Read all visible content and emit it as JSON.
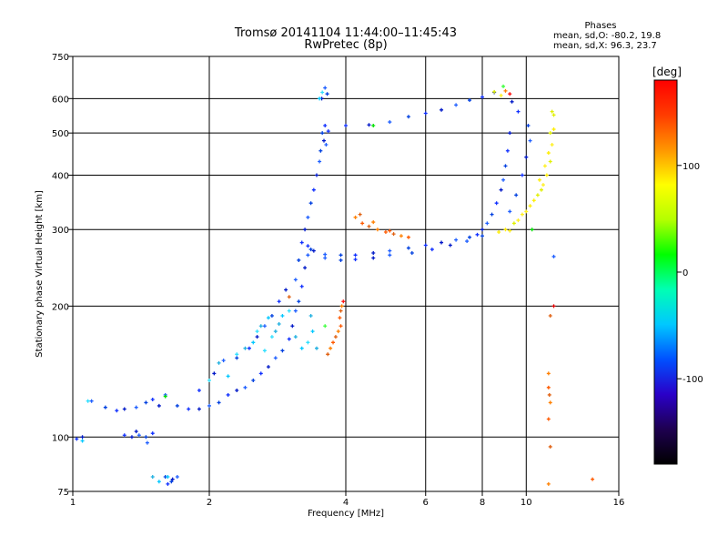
{
  "chart_data": {
    "type": "scatter",
    "title": "Tromsø 20141104 11:44:00–11:45:43",
    "subtitle": "RwPretec (8p)",
    "xlabel": "Frequency [MHz]",
    "ylabel": "Stationary phase Virtual Height [km]",
    "xscale": "log",
    "yscale": "log",
    "xlim": [
      1,
      16
    ],
    "ylim": [
      75,
      750
    ],
    "xticks": [
      1,
      2,
      4,
      6,
      8,
      10,
      16
    ],
    "yticks": [
      75,
      100,
      200,
      300,
      400,
      500,
      600,
      750
    ],
    "grid": true,
    "stats": {
      "heading": "Phases",
      "o_line": "mean, sd,O: -80.2, 19.8",
      "x_line": "mean, sd,X: 96.3, 23.7"
    },
    "colorbar": {
      "label": "[deg]",
      "range": [
        -180,
        180
      ],
      "ticks": [
        100,
        0,
        -100
      ],
      "colors": [
        "#000000",
        "#1e0050",
        "#2a00c8",
        "#0050ff",
        "#00c8ff",
        "#00ffb4",
        "#00ff00",
        "#b4ff00",
        "#ffff00",
        "#ff9600",
        "#ff3c00",
        "#ff0000"
      ]
    },
    "series": [
      {
        "color_group": "blue",
        "points": [
          [
            1.02,
            99
          ],
          [
            1.05,
            100
          ],
          [
            1.1,
            121
          ],
          [
            1.18,
            117
          ],
          [
            1.25,
            115
          ],
          [
            1.3,
            116
          ],
          [
            1.38,
            117
          ],
          [
            1.45,
            120
          ],
          [
            1.5,
            122
          ],
          [
            1.55,
            118
          ],
          [
            1.6,
            125
          ],
          [
            1.7,
            118
          ],
          [
            1.8,
            116
          ],
          [
            1.9,
            116
          ],
          [
            2.0,
            118
          ],
          [
            2.1,
            120
          ],
          [
            2.2,
            125
          ],
          [
            2.3,
            128
          ],
          [
            2.4,
            130
          ],
          [
            2.5,
            135
          ],
          [
            2.6,
            140
          ],
          [
            2.7,
            145
          ],
          [
            2.8,
            152
          ],
          [
            2.9,
            158
          ],
          [
            3.0,
            168
          ],
          [
            3.05,
            180
          ],
          [
            3.1,
            195
          ],
          [
            3.15,
            205
          ],
          [
            3.2,
            222
          ],
          [
            3.25,
            245
          ],
          [
            3.3,
            262
          ],
          [
            3.35,
            270
          ],
          [
            1.3,
            101
          ],
          [
            1.35,
            100
          ],
          [
            1.4,
            101
          ],
          [
            1.45,
            100
          ],
          [
            1.5,
            102
          ],
          [
            1.38,
            103
          ],
          [
            1.46,
            97
          ],
          [
            1.6,
            81
          ],
          [
            1.62,
            78
          ],
          [
            1.66,
            80
          ],
          [
            1.7,
            81
          ],
          [
            1.65,
            79
          ],
          [
            1.9,
            128
          ],
          [
            2.05,
            140
          ],
          [
            2.15,
            150
          ],
          [
            2.3,
            152
          ],
          [
            2.45,
            160
          ],
          [
            2.55,
            170
          ],
          [
            2.65,
            180
          ],
          [
            2.75,
            190
          ],
          [
            2.85,
            205
          ],
          [
            2.95,
            218
          ],
          [
            3.1,
            230
          ],
          [
            3.15,
            255
          ],
          [
            3.2,
            280
          ],
          [
            3.25,
            300
          ],
          [
            3.3,
            320
          ],
          [
            3.35,
            345
          ],
          [
            3.4,
            370
          ],
          [
            3.45,
            400
          ],
          [
            3.5,
            430
          ],
          [
            3.55,
            500
          ],
          [
            3.6,
            520
          ],
          [
            3.58,
            480
          ],
          [
            3.62,
            470
          ],
          [
            3.52,
            455
          ],
          [
            3.66,
            505
          ],
          [
            3.54,
            600
          ],
          [
            3.6,
            635
          ],
          [
            3.64,
            615
          ],
          [
            3.3,
            275
          ],
          [
            3.4,
            268
          ],
          [
            3.6,
            263
          ],
          [
            3.9,
            262
          ],
          [
            4.2,
            262
          ],
          [
            4.6,
            265
          ],
          [
            5.0,
            268
          ],
          [
            5.5,
            272
          ],
          [
            6.0,
            276
          ],
          [
            6.5,
            280
          ],
          [
            7.0,
            284
          ],
          [
            7.5,
            288
          ],
          [
            7.8,
            292
          ],
          [
            8.0,
            300
          ],
          [
            8.2,
            310
          ],
          [
            8.4,
            325
          ],
          [
            8.6,
            345
          ],
          [
            8.8,
            370
          ],
          [
            8.9,
            390
          ],
          [
            9.0,
            420
          ],
          [
            9.1,
            455
          ],
          [
            9.2,
            500
          ],
          [
            3.6,
            258
          ],
          [
            3.9,
            255
          ],
          [
            4.2,
            256
          ],
          [
            4.6,
            258
          ],
          [
            5.0,
            262
          ],
          [
            5.6,
            265
          ],
          [
            6.2,
            270
          ],
          [
            6.8,
            276
          ],
          [
            7.4,
            282
          ],
          [
            8.0,
            290
          ],
          [
            4.0,
            520
          ],
          [
            4.5,
            522
          ],
          [
            5.0,
            530
          ],
          [
            5.5,
            545
          ],
          [
            6.0,
            555
          ],
          [
            6.5,
            565
          ],
          [
            7.0,
            580
          ],
          [
            7.5,
            595
          ],
          [
            8.0,
            605
          ],
          [
            8.5,
            620
          ],
          [
            9.2,
            330
          ],
          [
            9.5,
            360
          ],
          [
            9.8,
            400
          ],
          [
            10.0,
            440
          ],
          [
            10.2,
            480
          ],
          [
            10.1,
            520
          ],
          [
            9.6,
            560
          ],
          [
            9.3,
            590
          ],
          [
            11.5,
            260
          ]
        ]
      },
      {
        "color_group": "cyan",
        "points": [
          [
            1.05,
            98
          ],
          [
            1.08,
            121
          ],
          [
            1.5,
            81
          ],
          [
            1.55,
            79
          ],
          [
            2.0,
            135
          ],
          [
            2.1,
            148
          ],
          [
            2.2,
            138
          ],
          [
            2.3,
            155
          ],
          [
            2.4,
            160
          ],
          [
            2.5,
            165
          ],
          [
            2.55,
            175
          ],
          [
            2.6,
            180
          ],
          [
            2.7,
            188
          ],
          [
            2.75,
            170
          ],
          [
            2.8,
            175
          ],
          [
            2.9,
            190
          ],
          [
            3.0,
            195
          ],
          [
            3.1,
            170
          ],
          [
            3.2,
            160
          ],
          [
            3.3,
            165
          ],
          [
            3.35,
            190
          ],
          [
            3.5,
            600
          ],
          [
            3.55,
            620
          ],
          [
            3.45,
            160
          ],
          [
            3.38,
            175
          ],
          [
            2.65,
            158
          ],
          [
            2.85,
            182
          ],
          [
            1.62,
            81
          ]
        ]
      },
      {
        "color_group": "orange",
        "points": [
          [
            4.2,
            320
          ],
          [
            4.35,
            310
          ],
          [
            4.5,
            305
          ],
          [
            4.7,
            300
          ],
          [
            4.9,
            296
          ],
          [
            5.1,
            293
          ],
          [
            5.3,
            290
          ],
          [
            5.5,
            288
          ],
          [
            4.3,
            325
          ],
          [
            4.6,
            312
          ],
          [
            5.0,
            298
          ],
          [
            3.65,
            155
          ],
          [
            3.7,
            160
          ],
          [
            3.75,
            165
          ],
          [
            3.8,
            170
          ],
          [
            3.85,
            175
          ],
          [
            3.9,
            180
          ],
          [
            3.9,
            195
          ],
          [
            3.92,
            200
          ],
          [
            3.88,
            188
          ],
          [
            11.3,
            190
          ],
          [
            11.2,
            140
          ],
          [
            11.2,
            130
          ],
          [
            11.25,
            125
          ],
          [
            11.3,
            120
          ],
          [
            11.2,
            110
          ],
          [
            11.3,
            95
          ],
          [
            11.2,
            78
          ],
          [
            14.0,
            80
          ],
          [
            3.0,
            210
          ],
          [
            9.0,
            625
          ]
        ]
      },
      {
        "color_group": "yellow",
        "points": [
          [
            9.0,
            300
          ],
          [
            9.4,
            310
          ],
          [
            9.8,
            325
          ],
          [
            10.2,
            340
          ],
          [
            10.6,
            360
          ],
          [
            10.9,
            380
          ],
          [
            11.1,
            400
          ],
          [
            11.3,
            430
          ],
          [
            11.4,
            470
          ],
          [
            11.5,
            510
          ],
          [
            11.5,
            550
          ],
          [
            10.0,
            330
          ],
          [
            10.4,
            350
          ],
          [
            10.8,
            370
          ],
          [
            11.0,
            420
          ],
          [
            11.2,
            450
          ],
          [
            11.3,
            500
          ],
          [
            9.6,
            315
          ],
          [
            10.7,
            390
          ],
          [
            11.4,
            560
          ],
          [
            9.2,
            298
          ],
          [
            8.7,
            296
          ],
          [
            8.5,
            622
          ],
          [
            8.8,
            610
          ]
        ]
      },
      {
        "color_group": "green",
        "points": [
          [
            1.6,
            124
          ],
          [
            3.6,
            180
          ],
          [
            4.6,
            520
          ],
          [
            8.9,
            640
          ],
          [
            10.3,
            300
          ]
        ]
      },
      {
        "color_group": "red",
        "points": [
          [
            9.2,
            615
          ],
          [
            11.5,
            200
          ],
          [
            3.95,
            205
          ]
        ]
      }
    ]
  }
}
